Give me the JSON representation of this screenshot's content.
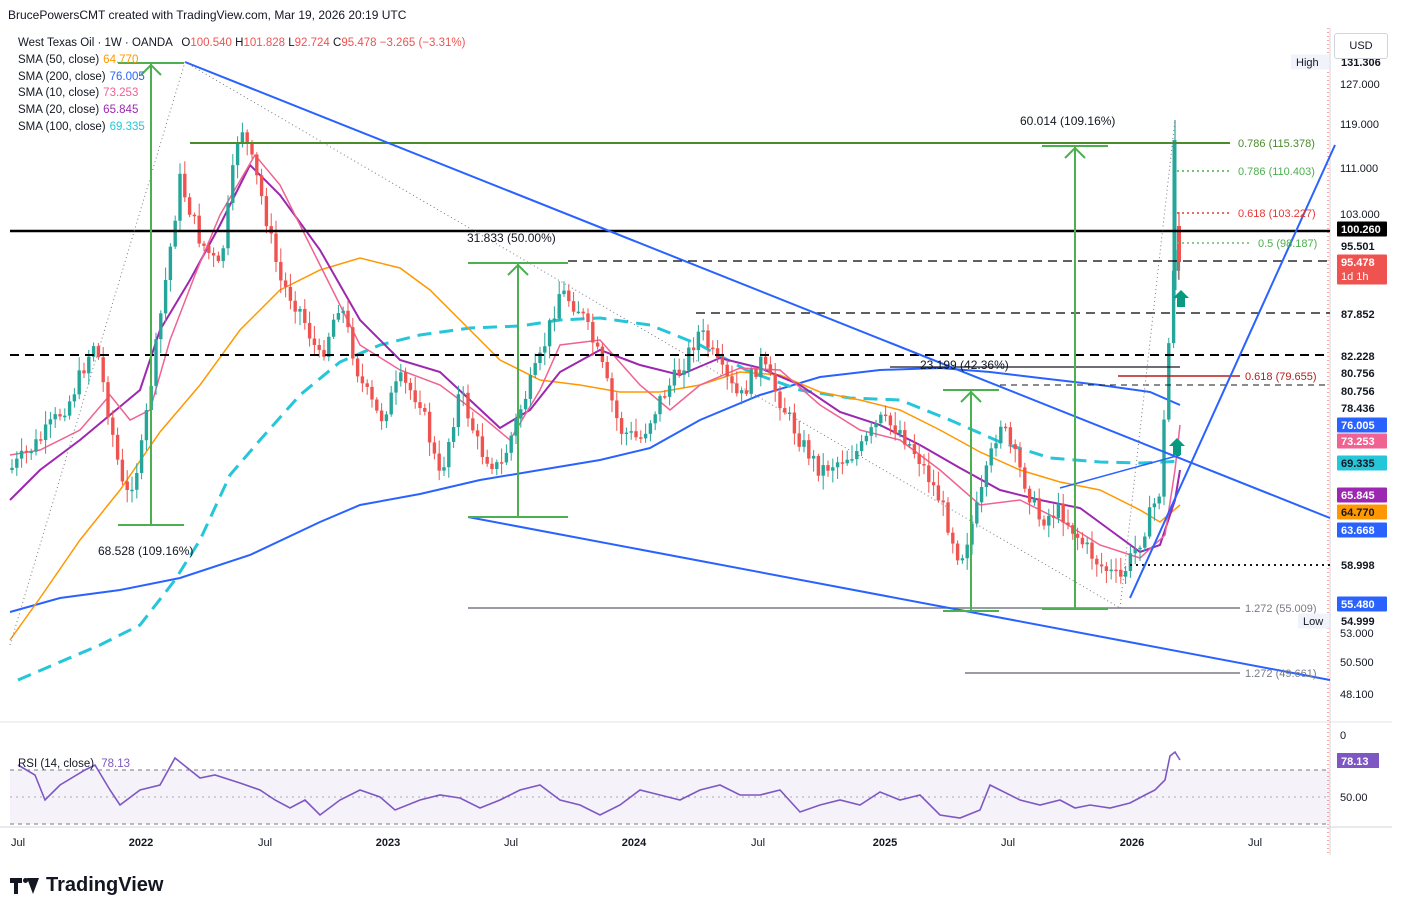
{
  "header": {
    "credit": "BrucePowersCMT created with TradingView.com, Mar 19, 2026 20:19 UTC"
  },
  "legend": {
    "symbol": "West Texas Oil · 1W · OANDA",
    "o_label": "O",
    "o": "100.540",
    "h_label": "H",
    "h": "101.828",
    "l_label": "L",
    "l": "92.724",
    "c_label": "C",
    "c": "95.478",
    "change": "−3.265 (−3.31%)",
    "indicators": [
      {
        "label": "SMA (50, close)",
        "value": "64.770",
        "color": "#ff9800"
      },
      {
        "label": "SMA (200, close)",
        "value": "76.005",
        "color": "#2962ff"
      },
      {
        "label": "SMA (10, close)",
        "value": "73.253",
        "color": "#f06292"
      },
      {
        "label": "SMA (20, close)",
        "value": "65.845",
        "color": "#9c27b0"
      },
      {
        "label": "SMA (100, close)",
        "value": "69.335",
        "color": "#26c6da"
      }
    ]
  },
  "rsi": {
    "label": "RSI (14, close)",
    "value": "78.13",
    "color": "#7e57c2"
  },
  "currency": "USD",
  "logo_text": "TradingView",
  "chart_data": {
    "type": "candlestick",
    "symbol": "West Texas Oil",
    "timeframe": "1W",
    "x_ticks": [
      "Jul",
      "2022",
      "Jul",
      "2023",
      "Jul",
      "2024",
      "Jul",
      "2025",
      "Jul",
      "2026",
      "Jul"
    ],
    "y_ticks": [
      "127.000",
      "119.000",
      "111.000",
      "103.000",
      "87.852",
      "53.000",
      "50.500",
      "48.100"
    ],
    "ylim": [
      48.1,
      131.3
    ],
    "price_tags": [
      {
        "text": "131.306",
        "bg": "#ffffff",
        "fg": "#131722",
        "tag": "High"
      },
      {
        "text": "100.260",
        "bg": "#000000",
        "fg": "#ffffff"
      },
      {
        "text": "95.501",
        "bg": "#ffffff",
        "fg": "#131722"
      },
      {
        "text": "95.478",
        "bg": "#ef5350",
        "fg": "#ffffff",
        "sub": "1d 1h"
      },
      {
        "text": "87.852",
        "bg": "#ffffff",
        "fg": "#131722"
      },
      {
        "text": "82.228",
        "bg": "#ffffff",
        "fg": "#131722"
      },
      {
        "text": "80.756",
        "bg": "#ffffff",
        "fg": "#131722"
      },
      {
        "text": "80.756",
        "bg": "#ffffff",
        "fg": "#131722"
      },
      {
        "text": "78.436",
        "bg": "#ffffff",
        "fg": "#131722"
      },
      {
        "text": "76.005",
        "bg": "#2962ff",
        "fg": "#ffffff"
      },
      {
        "text": "73.253",
        "bg": "#f06292",
        "fg": "#ffffff"
      },
      {
        "text": "69.335",
        "bg": "#26c6da",
        "fg": "#131722"
      },
      {
        "text": "65.845",
        "bg": "#9c27b0",
        "fg": "#ffffff"
      },
      {
        "text": "64.770",
        "bg": "#ff9800",
        "fg": "#131722"
      },
      {
        "text": "63.668",
        "bg": "#2962ff",
        "fg": "#ffffff"
      },
      {
        "text": "58.998",
        "bg": "#ffffff",
        "fg": "#131722"
      },
      {
        "text": "55.480",
        "bg": "#2962ff",
        "fg": "#ffffff"
      },
      {
        "text": "54.999",
        "bg": "#ffffff",
        "fg": "#131722",
        "tag": "Low"
      }
    ],
    "annotations": [
      "68.528 (109.16%)",
      "31.833 (50.00%)",
      "23.199 (42.36%)",
      "60.014 (109.16%)",
      "0.786 (115.378)",
      "0.786 (110.403)",
      "0.618 (103.227)",
      "0.5 (98.187)",
      "0.618 (79.655)",
      "1.272 (55.009)",
      "1.272 (49.661)"
    ],
    "rsi_ticks": [
      "50.00"
    ],
    "rsi_last": 78.13,
    "last_close": 95.478
  }
}
